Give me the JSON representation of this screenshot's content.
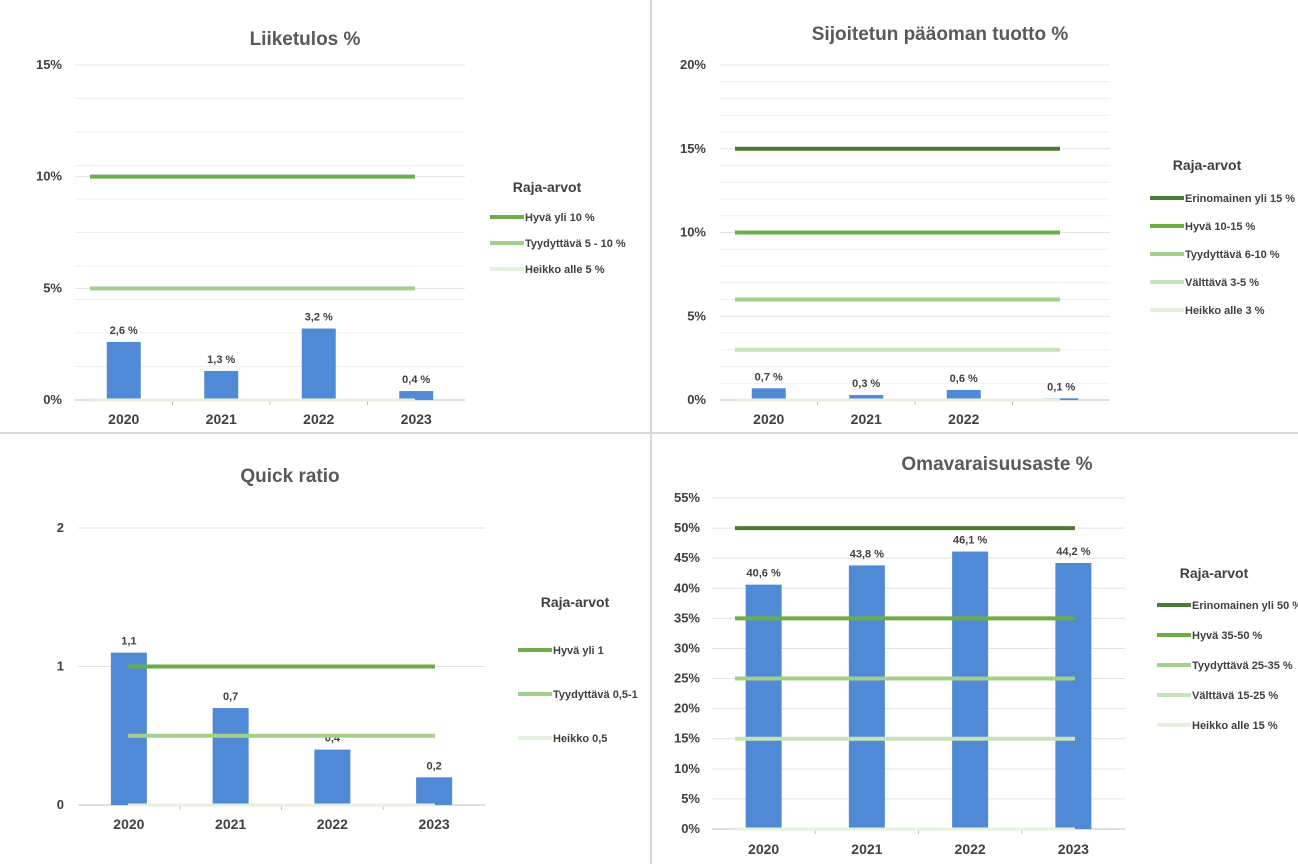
{
  "colors": {
    "bar": "#5089d6",
    "grid": "#e3e3e3",
    "axis": "#bfbfbf",
    "erinomainen": "#4a7a33",
    "hyva": "#6aae45",
    "tyydyttava": "#a2d08b",
    "valttava": "#c6e3b8",
    "heikko": "#e4f1dd"
  },
  "chart_data": [
    {
      "id": "liiketulos",
      "type": "bar",
      "title": "Liiketulos %",
      "categories": [
        "2020",
        "2021",
        "2022",
        "2023"
      ],
      "values": [
        2.6,
        1.3,
        3.2,
        0.4
      ],
      "data_labels": [
        "2,6 %",
        "1,3 %",
        "3,2 %",
        "0,4 %"
      ],
      "ylim": [
        0,
        15
      ],
      "y_ticks": [
        0,
        5,
        10,
        15
      ],
      "y_tick_labels": [
        "0%",
        "5%",
        "10%",
        "15%"
      ],
      "minor_grid_step": 1.5,
      "legend_title": "Raja-arvot",
      "legend_placement": "right",
      "thresholds": [
        {
          "name": "Hyvä yli 10 %",
          "value": 10,
          "color_key": "hyva"
        },
        {
          "name": "Tyydyttävä 5 - 10 %",
          "value": 5,
          "color_key": "tyydyttava"
        },
        {
          "name": "Heikko alle 5 %",
          "value": 0,
          "color_key": "heikko"
        }
      ]
    },
    {
      "id": "sijoitetun",
      "type": "bar",
      "title": "Sijoitetun pääoman tuotto %",
      "categories": [
        "2020",
        "2021",
        "2022",
        ""
      ],
      "values": [
        0.7,
        0.3,
        0.6,
        0.1
      ],
      "data_labels": [
        "0,7 %",
        "0,3 %",
        "0,6 %",
        "0,1 %"
      ],
      "ylim": [
        0,
        20
      ],
      "y_ticks": [
        0,
        5,
        10,
        15,
        20
      ],
      "y_tick_labels": [
        "0%",
        "5%",
        "10%",
        "15%",
        "20%"
      ],
      "minor_grid_step": 1,
      "legend_title": "Raja-arvot",
      "legend_placement": "right",
      "thresholds": [
        {
          "name": "Erinomainen yli 15 %",
          "value": 15,
          "color_key": "erinomainen"
        },
        {
          "name": "Hyvä 10-15 %",
          "value": 10,
          "color_key": "hyva"
        },
        {
          "name": "Tyydyttävä 6-10 %",
          "value": 6,
          "color_key": "tyydyttava"
        },
        {
          "name": "Välttävä 3-5 %",
          "value": 3,
          "color_key": "valttava"
        },
        {
          "name": "Heikko alle 3 %",
          "value": 0,
          "color_key": "heikko"
        }
      ]
    },
    {
      "id": "quick",
      "type": "bar",
      "title": "Quick ratio",
      "categories": [
        "2020",
        "2021",
        "2022",
        "2023"
      ],
      "values": [
        1.1,
        0.7,
        0.4,
        0.2
      ],
      "data_labels": [
        "1,1",
        "0,7",
        "0,4",
        "0,2"
      ],
      "ylim": [
        0,
        2
      ],
      "y_ticks": [
        0,
        1,
        2
      ],
      "y_tick_labels": [
        "0",
        "1",
        "2"
      ],
      "minor_grid_step": 0,
      "legend_title": "Raja-arvot",
      "legend_placement": "right",
      "thresholds": [
        {
          "name": "Hyvä yli 1",
          "value": 1,
          "color_key": "hyva"
        },
        {
          "name": "Tyydyttävä 0,5-1",
          "value": 0.5,
          "color_key": "tyydyttava"
        },
        {
          "name": "Heikko 0,5",
          "value": 0,
          "color_key": "heikko"
        }
      ]
    },
    {
      "id": "omavaraisuus",
      "type": "bar",
      "title": "Omavaraisuusaste %",
      "categories": [
        "2020",
        "2021",
        "2022",
        "2023"
      ],
      "values": [
        40.6,
        43.8,
        46.1,
        44.2
      ],
      "data_labels": [
        "40,6 %",
        "43,8 %",
        "46,1 %",
        "44,2 %"
      ],
      "ylim": [
        0,
        55
      ],
      "y_ticks": [
        0,
        5,
        10,
        15,
        20,
        25,
        30,
        35,
        40,
        45,
        50,
        55
      ],
      "y_tick_labels": [
        "0%",
        "5%",
        "10%",
        "15%",
        "20%",
        "25%",
        "30%",
        "35%",
        "40%",
        "45%",
        "50%",
        "55%"
      ],
      "minor_grid_step": 0,
      "legend_title": "Raja-arvot",
      "legend_placement": "right",
      "thresholds": [
        {
          "name": "Erinomainen yli 50 %",
          "value": 50,
          "color_key": "erinomainen"
        },
        {
          "name": "Hyvä 35-50 %",
          "value": 35,
          "color_key": "hyva"
        },
        {
          "name": "Tyydyttävä 25-35 %",
          "value": 25,
          "color_key": "tyydyttava"
        },
        {
          "name": "Välttävä 15-25 %",
          "value": 15,
          "color_key": "valttava"
        },
        {
          "name": "Heikko alle 15 %",
          "value": 0,
          "color_key": "heikko"
        }
      ]
    }
  ]
}
